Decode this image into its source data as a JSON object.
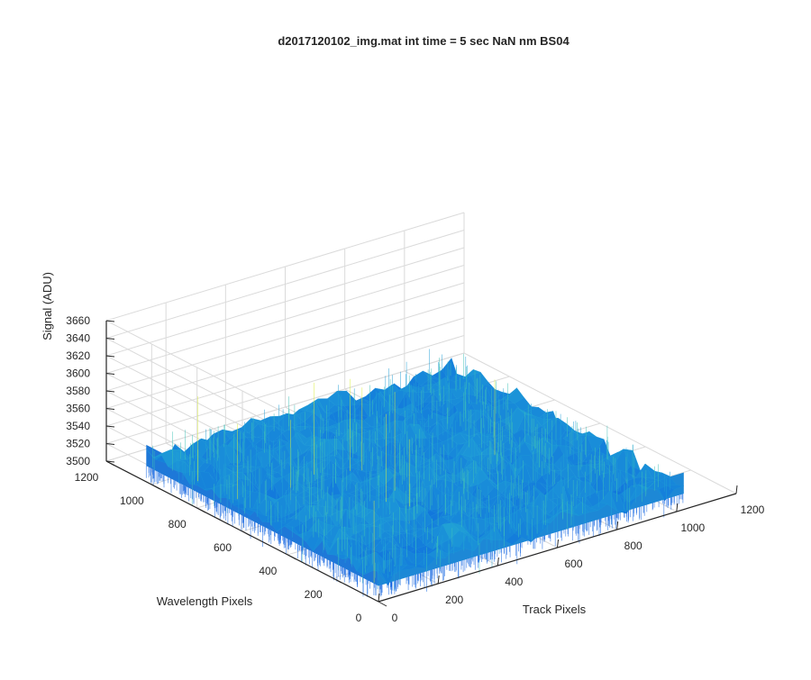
{
  "chart_data": {
    "type": "surface",
    "title": "d2017120102_img.mat int time = 5 sec  NaN nm BS04",
    "xlabel": "Track Pixels",
    "ylabel": "Wavelength Pixels",
    "zlabel": "Signal (ADU)",
    "xlim": [
      0,
      1200
    ],
    "ylim": [
      0,
      1200
    ],
    "zlim": [
      3500,
      3660
    ],
    "xticks": [
      "0",
      "200",
      "400",
      "600",
      "800",
      "1000",
      "1200"
    ],
    "yticks": [
      "0",
      "200",
      "400",
      "600",
      "800",
      "1000",
      "1200"
    ],
    "zticks": [
      "3500",
      "3520",
      "3540",
      "3560",
      "3580",
      "3600",
      "3620",
      "3640",
      "3660"
    ],
    "surface": {
      "x_extent": [
        0,
        1024
      ],
      "y_extent": [
        0,
        1024
      ],
      "mean": 3528,
      "noise_typical_min": 3505,
      "noise_typical_max": 3575,
      "spike_max": 3630,
      "colormap": "parula"
    },
    "grid": true,
    "colors": {
      "low": "#0a5fe0",
      "mid": "#1f9fd6",
      "high": "#3fc1b8",
      "peak": "#d9ef3c",
      "grid": "#dadada",
      "axis": "#262626"
    }
  }
}
